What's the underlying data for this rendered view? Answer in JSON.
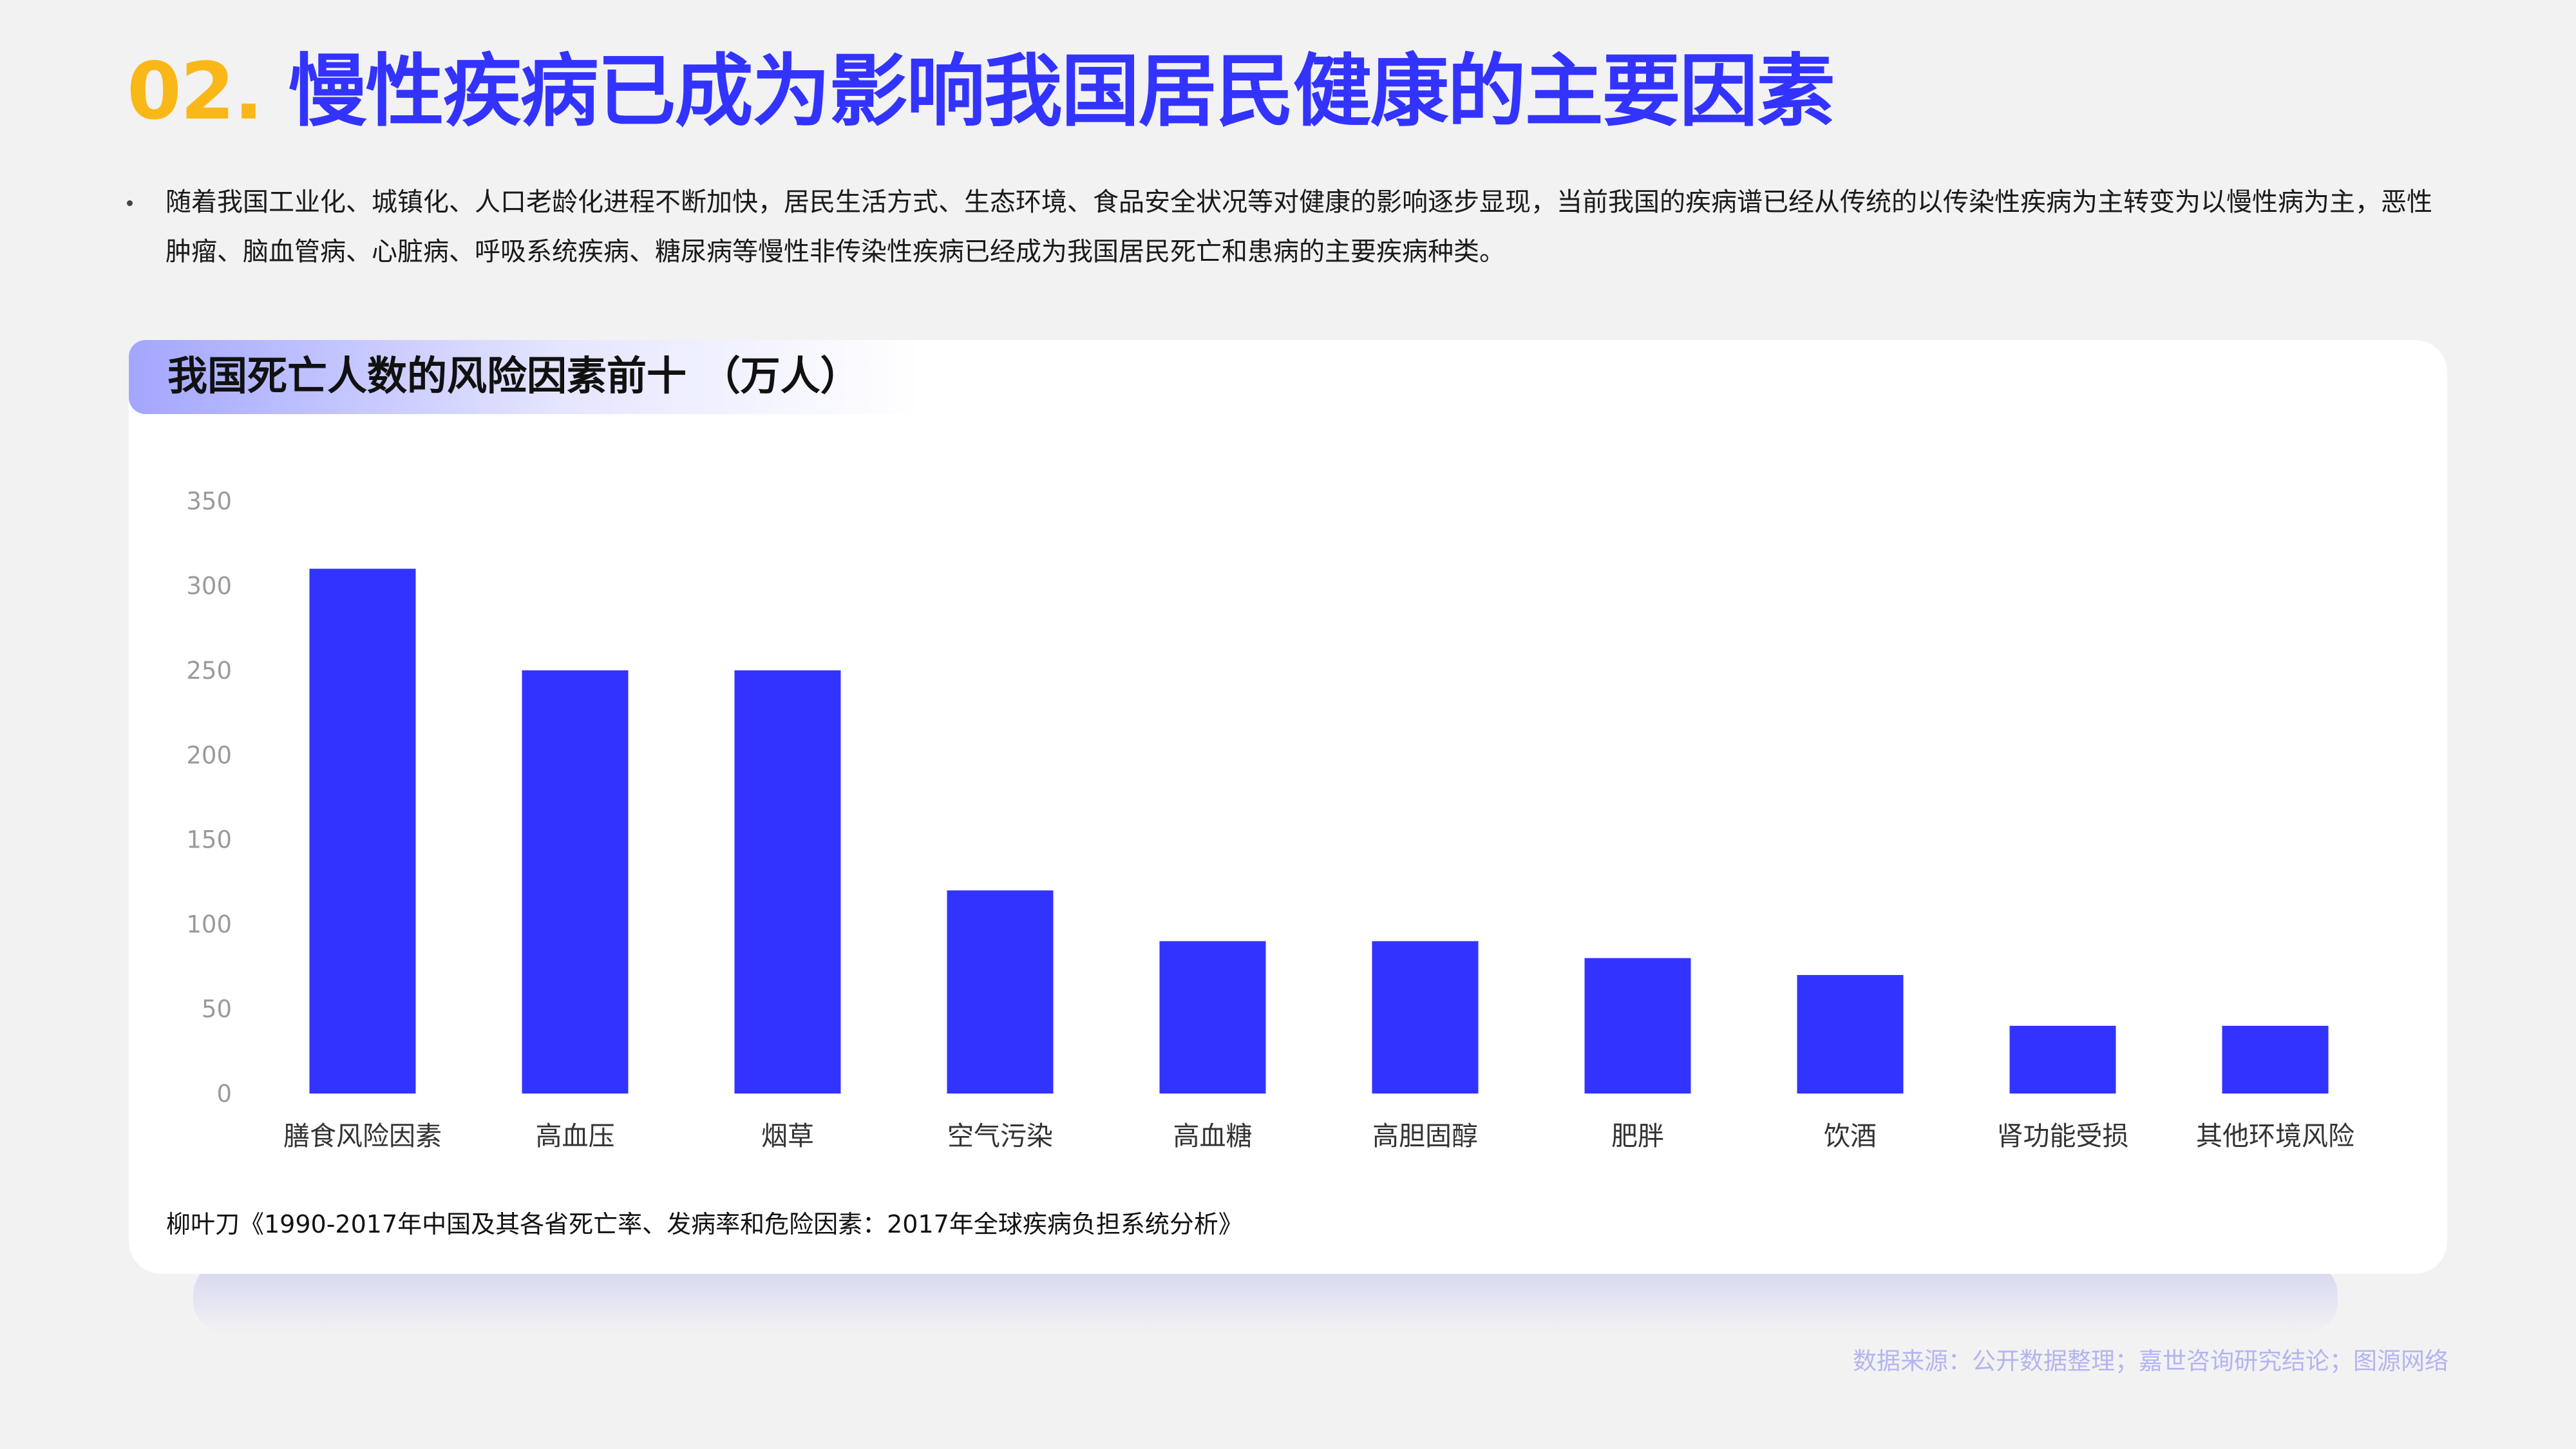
{
  "heading": {
    "number": "02.",
    "title": "慢性疾病已成为影响我国居民健康的主要因素"
  },
  "bullet": {
    "text": "随着我国工业化、城镇化、人口老龄化进程不断加快，居民生活方式、生态环境、食品安全状况等对健康的影响逐步显现，当前我国的疾病谱已经从传统的以传染性疾病为主转变为以慢性病为主，恶性肿瘤、脑血管病、心脏病、呼吸系统疾病、糖尿病等慢性非传染性疾病已经成为我国居民死亡和患病的主要疾病种类。"
  },
  "chart_data": {
    "type": "bar",
    "title": "我国死亡人数的风险因素前十 （万人）",
    "categories": [
      "膳食风险因素",
      "高血压",
      "烟草",
      "空气污染",
      "高血糖",
      "高胆固醇",
      "肥胖",
      "饮酒",
      "肾功能受损",
      "其他环境风险"
    ],
    "values": [
      310,
      250,
      250,
      120,
      90,
      90,
      80,
      70,
      40,
      40
    ],
    "ylim": [
      0,
      350
    ],
    "yticks": [
      0,
      50,
      100,
      150,
      200,
      250,
      300,
      350
    ],
    "bar_color": "#3333ff",
    "grid": false,
    "legend": false
  },
  "citation": "柳叶刀《1990-2017年中国及其各省死亡率、发病率和危险因素：2017年全球疾病负担系统分析》",
  "footer": "数据来源：公开数据整理；嘉世咨询研究结论；图源网络",
  "colors": {
    "accent_number": "#f9b817",
    "accent_title": "#3333ff",
    "footer_text": "#b3b5f0"
  }
}
